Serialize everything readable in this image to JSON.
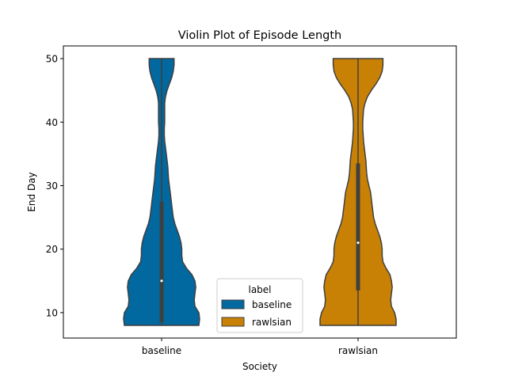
{
  "chart_data": {
    "type": "violin",
    "title": "Violin Plot of Episode Length",
    "xlabel": "Society",
    "ylabel": "End Day",
    "categories": [
      "baseline",
      "rawlsian"
    ],
    "ylim": [
      6,
      52
    ],
    "yticks": [
      10,
      20,
      30,
      40,
      50
    ],
    "grid": false,
    "legend": {
      "title": "label",
      "placement": "lower-center",
      "entries": [
        {
          "label": "baseline",
          "color": "#0173b2"
        },
        {
          "label": "rawlsian",
          "color": "#de8f05"
        }
      ]
    },
    "series": [
      {
        "name": "baseline",
        "color": "#0173b2",
        "min": 8,
        "max": 50,
        "q1": 8.5,
        "median": 15,
        "q3": 27.5,
        "density": [
          {
            "y": 8,
            "w": 0.96
          },
          {
            "y": 9,
            "w": 0.98
          },
          {
            "y": 10,
            "w": 0.96
          },
          {
            "y": 11,
            "w": 0.86
          },
          {
            "y": 12,
            "w": 0.84
          },
          {
            "y": 13,
            "w": 0.86
          },
          {
            "y": 14,
            "w": 0.88
          },
          {
            "y": 15,
            "w": 0.86
          },
          {
            "y": 16,
            "w": 0.78
          },
          {
            "y": 17,
            "w": 0.64
          },
          {
            "y": 18,
            "w": 0.54
          },
          {
            "y": 19,
            "w": 0.52
          },
          {
            "y": 20,
            "w": 0.52
          },
          {
            "y": 21,
            "w": 0.5
          },
          {
            "y": 22,
            "w": 0.46
          },
          {
            "y": 23,
            "w": 0.4
          },
          {
            "y": 24,
            "w": 0.34
          },
          {
            "y": 25,
            "w": 0.3
          },
          {
            "y": 26,
            "w": 0.28
          },
          {
            "y": 27,
            "w": 0.26
          },
          {
            "y": 28,
            "w": 0.24
          },
          {
            "y": 29,
            "w": 0.22
          },
          {
            "y": 30,
            "w": 0.2
          },
          {
            "y": 31,
            "w": 0.18
          },
          {
            "y": 32,
            "w": 0.17
          },
          {
            "y": 33,
            "w": 0.16
          },
          {
            "y": 34,
            "w": 0.14
          },
          {
            "y": 35,
            "w": 0.12
          },
          {
            "y": 36,
            "w": 0.1
          },
          {
            "y": 37,
            "w": 0.08
          },
          {
            "y": 38,
            "w": 0.07
          },
          {
            "y": 39,
            "w": 0.07
          },
          {
            "y": 40,
            "w": 0.08
          },
          {
            "y": 41,
            "w": 0.08
          },
          {
            "y": 42,
            "w": 0.08
          },
          {
            "y": 43,
            "w": 0.08
          },
          {
            "y": 44,
            "w": 0.1
          },
          {
            "y": 45,
            "w": 0.14
          },
          {
            "y": 46,
            "w": 0.2
          },
          {
            "y": 47,
            "w": 0.26
          },
          {
            "y": 48,
            "w": 0.3
          },
          {
            "y": 49,
            "w": 0.32
          },
          {
            "y": 50,
            "w": 0.32
          }
        ]
      },
      {
        "name": "rawlsian",
        "color": "#de8f05",
        "min": 8,
        "max": 50,
        "q1": 13.5,
        "median": 21,
        "q3": 33.5,
        "density": [
          {
            "y": 8,
            "w": 0.98
          },
          {
            "y": 9,
            "w": 0.98
          },
          {
            "y": 10,
            "w": 0.94
          },
          {
            "y": 11,
            "w": 0.86
          },
          {
            "y": 12,
            "w": 0.84
          },
          {
            "y": 13,
            "w": 0.86
          },
          {
            "y": 14,
            "w": 0.88
          },
          {
            "y": 15,
            "w": 0.86
          },
          {
            "y": 16,
            "w": 0.82
          },
          {
            "y": 17,
            "w": 0.72
          },
          {
            "y": 18,
            "w": 0.64
          },
          {
            "y": 19,
            "w": 0.62
          },
          {
            "y": 20,
            "w": 0.62
          },
          {
            "y": 21,
            "w": 0.6
          },
          {
            "y": 22,
            "w": 0.56
          },
          {
            "y": 23,
            "w": 0.5
          },
          {
            "y": 24,
            "w": 0.44
          },
          {
            "y": 25,
            "w": 0.4
          },
          {
            "y": 26,
            "w": 0.38
          },
          {
            "y": 27,
            "w": 0.36
          },
          {
            "y": 28,
            "w": 0.34
          },
          {
            "y": 29,
            "w": 0.32
          },
          {
            "y": 30,
            "w": 0.28
          },
          {
            "y": 31,
            "w": 0.24
          },
          {
            "y": 32,
            "w": 0.22
          },
          {
            "y": 33,
            "w": 0.21
          },
          {
            "y": 34,
            "w": 0.2
          },
          {
            "y": 35,
            "w": 0.18
          },
          {
            "y": 36,
            "w": 0.16
          },
          {
            "y": 37,
            "w": 0.14
          },
          {
            "y": 38,
            "w": 0.13
          },
          {
            "y": 39,
            "w": 0.12
          },
          {
            "y": 40,
            "w": 0.12
          },
          {
            "y": 41,
            "w": 0.13
          },
          {
            "y": 42,
            "w": 0.14
          },
          {
            "y": 43,
            "w": 0.18
          },
          {
            "y": 44,
            "w": 0.24
          },
          {
            "y": 45,
            "w": 0.34
          },
          {
            "y": 46,
            "w": 0.46
          },
          {
            "y": 47,
            "w": 0.56
          },
          {
            "y": 48,
            "w": 0.62
          },
          {
            "y": 49,
            "w": 0.64
          },
          {
            "y": 50,
            "w": 0.64
          }
        ]
      }
    ]
  }
}
